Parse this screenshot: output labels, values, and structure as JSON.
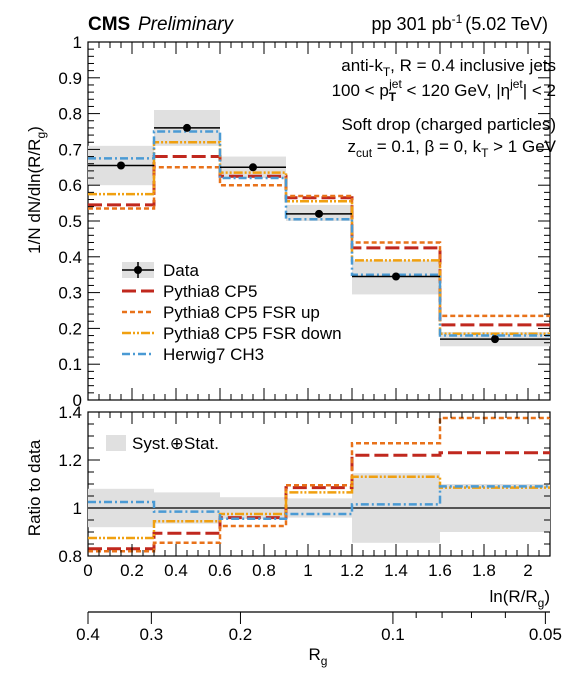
{
  "header": {
    "experiment": "CMS",
    "status": "Preliminary",
    "luminosity": "pp 301 pb",
    "lumi_exp": "-1",
    "energy": "(5.02 TeV)"
  },
  "annotations": {
    "line1": "anti-k",
    "line1_sub": "T",
    "line1_rest": ", R = 0.4 inclusive jets",
    "line2_pre": "100 < p",
    "line2_sub": "T",
    "line2_sup": "jet",
    "line2_mid": " < 120 GeV, |η",
    "line2_sup2": "jet",
    "line2_end": "| < 2",
    "line3": "Soft drop (charged particles)",
    "line4_a": "z",
    "line4_sub": "cut",
    "line4_b": " = 0.1, β = 0, k",
    "line4_sub2": "T",
    "line4_c": " > 1 GeV"
  },
  "legend": {
    "data": "Data",
    "pythia": "Pythia8 CP5",
    "fsr_up": "Pythia8 CP5 FSR up",
    "fsr_down": "Pythia8 CP5 FSR down",
    "herwig": "Herwig7 CH3",
    "syst": "Syst.⊕Stat."
  },
  "colors": {
    "data": "#000000",
    "pythia": "#c0281e",
    "fsr_up": "#e8721a",
    "fsr_down": "#f0a010",
    "herwig": "#4a9ad4",
    "band": "#e0e0e0"
  },
  "chart_data": [
    {
      "type": "line",
      "panel": "top",
      "xlabel": "",
      "ylabel": "1/N dN/dln(R/R",
      "ylabel_sub": "g",
      "ylabel_end": ")",
      "xlim": [
        0,
        2.1
      ],
      "ylim": [
        0,
        1
      ],
      "yticks": [
        "0",
        "0.1",
        "0.2",
        "0.3",
        "0.4",
        "0.5",
        "0.6",
        "0.7",
        "0.8",
        "0.9",
        "1"
      ],
      "bin_edges": [
        0,
        0.3,
        0.6,
        0.9,
        1.2,
        1.6,
        2.1
      ],
      "data": {
        "x": [
          0.15,
          0.45,
          0.75,
          1.05,
          1.4,
          1.85
        ],
        "y": [
          0.655,
          0.76,
          0.65,
          0.52,
          0.345,
          0.17
        ],
        "band_lo": [
          0.6,
          0.71,
          0.62,
          0.5,
          0.295,
          0.15
        ],
        "band_hi": [
          0.71,
          0.81,
          0.68,
          0.545,
          0.39,
          0.19
        ]
      },
      "series": [
        {
          "name": "Pythia8 CP5",
          "values": [
            0.545,
            0.68,
            0.625,
            0.565,
            0.425,
            0.21
          ]
        },
        {
          "name": "Pythia8 CP5 FSR up",
          "values": [
            0.535,
            0.65,
            0.6,
            0.57,
            0.44,
            0.235
          ]
        },
        {
          "name": "Pythia8 CP5 FSR down",
          "values": [
            0.575,
            0.72,
            0.635,
            0.555,
            0.39,
            0.185
          ]
        },
        {
          "name": "Herwig7 CH3",
          "values": [
            0.675,
            0.75,
            0.62,
            0.505,
            0.35,
            0.18
          ]
        }
      ]
    },
    {
      "type": "line",
      "panel": "bottom",
      "ylabel": "Ratio to data",
      "xlabel": "ln(R/R",
      "xlabel_sub": "g",
      "xlabel_end": ")",
      "xlim": [
        0,
        2.1
      ],
      "ylim": [
        0.8,
        1.4
      ],
      "yticks": [
        "0.8",
        "1",
        "1.2",
        "1.4"
      ],
      "xticks": [
        "0",
        "0.2",
        "0.4",
        "0.6",
        "0.8",
        "1",
        "1.2",
        "1.4",
        "1.6",
        "1.8",
        "2"
      ],
      "bin_edges": [
        0,
        0.3,
        0.6,
        0.9,
        1.2,
        1.6,
        2.1
      ],
      "band_lo": [
        0.92,
        0.935,
        0.955,
        0.96,
        0.855,
        0.9
      ],
      "band_hi": [
        1.08,
        1.065,
        1.045,
        1.04,
        1.145,
        1.1
      ],
      "series": [
        {
          "name": "Pythia8 CP5",
          "values": [
            0.83,
            0.895,
            0.96,
            1.085,
            1.22,
            1.23
          ]
        },
        {
          "name": "Pythia8 CP5 FSR up",
          "values": [
            0.82,
            0.855,
            0.925,
            1.095,
            1.27,
            1.375
          ]
        },
        {
          "name": "Pythia8 CP5 FSR down",
          "values": [
            0.875,
            0.945,
            0.975,
            1.065,
            1.13,
            1.085
          ]
        },
        {
          "name": "Herwig7 CH3",
          "values": [
            1.025,
            0.985,
            0.955,
            0.975,
            1.015,
            1.09
          ]
        }
      ]
    },
    {
      "type": "axis",
      "panel": "secondary-axis",
      "xlabel": "R",
      "xlabel_sub": "g",
      "ticks": [
        {
          "label": "0.4",
          "ln": 0.0
        },
        {
          "label": "0.3",
          "ln": 0.288
        },
        {
          "label": "0.2",
          "ln": 0.693
        },
        {
          "label": "0.1",
          "ln": 1.386
        },
        {
          "label": "0.05",
          "ln": 2.079
        }
      ]
    }
  ]
}
